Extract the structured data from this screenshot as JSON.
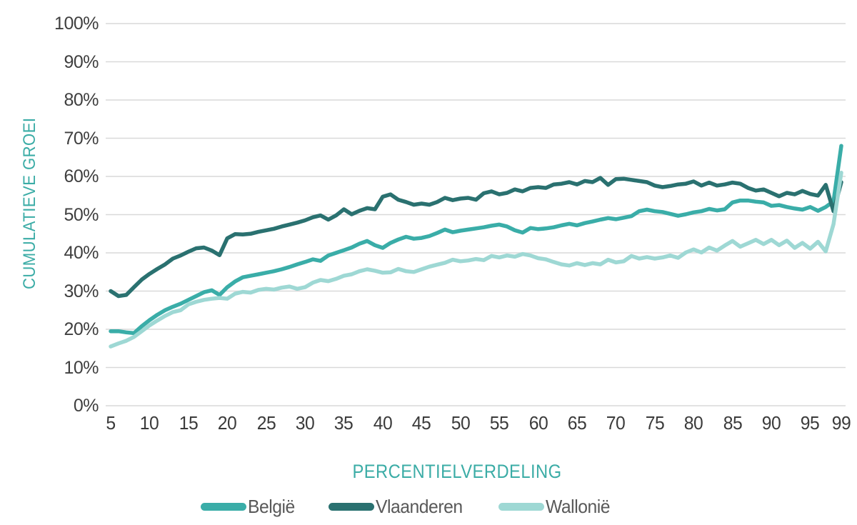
{
  "colors": {
    "background": "#ffffff",
    "gridline": "#d9d9d9",
    "tick_label": "#3f3f3f",
    "axis_title": "#3baca6",
    "legend_label": "#595959"
  },
  "chart_data": {
    "type": "line",
    "title": "",
    "xlabel": "PERCENTIELVERDELING",
    "ylabel": "CUMULATIEVE GROEI",
    "ylim": [
      0,
      100
    ],
    "grid": "horizontal",
    "legend_position": "bottom",
    "y_tick_values": [
      0,
      10,
      20,
      30,
      40,
      50,
      60,
      70,
      80,
      90,
      100
    ],
    "y_tick_labels": [
      "0%",
      "10%",
      "20%",
      "30%",
      "40%",
      "50%",
      "60%",
      "70%",
      "80%",
      "90%",
      "100%"
    ],
    "x_tick_values": [
      5,
      10,
      15,
      20,
      25,
      30,
      35,
      40,
      45,
      50,
      55,
      60,
      65,
      70,
      75,
      80,
      85,
      90,
      95,
      99
    ],
    "x_tick_labels": [
      "5",
      "10",
      "15",
      "20",
      "25",
      "30",
      "35",
      "40",
      "45",
      "50",
      "55",
      "60",
      "65",
      "70",
      "75",
      "80",
      "85",
      "90",
      "95",
      "99"
    ],
    "x": [
      5,
      6,
      7,
      8,
      9,
      10,
      11,
      12,
      13,
      14,
      15,
      16,
      17,
      18,
      19,
      20,
      21,
      22,
      23,
      24,
      25,
      26,
      27,
      28,
      29,
      30,
      31,
      32,
      33,
      34,
      35,
      36,
      37,
      38,
      39,
      40,
      41,
      42,
      43,
      44,
      45,
      46,
      47,
      48,
      49,
      50,
      51,
      52,
      53,
      54,
      55,
      56,
      57,
      58,
      59,
      60,
      61,
      62,
      63,
      64,
      65,
      66,
      67,
      68,
      69,
      70,
      71,
      72,
      73,
      74,
      75,
      76,
      77,
      78,
      79,
      80,
      81,
      82,
      83,
      84,
      85,
      86,
      87,
      88,
      89,
      90,
      91,
      92,
      93,
      94,
      95,
      96,
      97,
      98,
      99
    ],
    "series": [
      {
        "name": "België",
        "color": "#3aada8",
        "values": [
          19.5,
          19.5,
          19.2,
          19.0,
          20.8,
          22.4,
          23.8,
          25.0,
          25.9,
          26.7,
          27.7,
          28.7,
          29.7,
          30.2,
          29.0,
          31.0,
          32.5,
          33.6,
          34.0,
          34.4,
          34.8,
          35.2,
          35.7,
          36.3,
          37.0,
          37.6,
          38.3,
          37.9,
          39.3,
          40.0,
          40.7,
          41.4,
          42.4,
          43.1,
          42.0,
          41.3,
          42.6,
          43.5,
          44.2,
          43.7,
          43.9,
          44.4,
          45.2,
          46.1,
          45.4,
          45.8,
          46.1,
          46.4,
          46.7,
          47.1,
          47.4,
          46.9,
          45.9,
          45.3,
          46.5,
          46.2,
          46.4,
          46.7,
          47.2,
          47.6,
          47.2,
          47.8,
          48.2,
          48.7,
          49.1,
          48.8,
          49.2,
          49.6,
          50.9,
          51.3,
          50.9,
          50.7,
          50.2,
          49.7,
          50.1,
          50.6,
          50.9,
          51.5,
          51.1,
          51.4,
          53.2,
          53.7,
          53.7,
          53.4,
          53.2,
          52.3,
          52.5,
          52.0,
          51.6,
          51.3,
          52.0,
          51.0,
          52.0,
          53.5,
          68.0
        ]
      },
      {
        "name": "Vlaanderen",
        "color": "#2a7170",
        "values": [
          30.0,
          28.7,
          29.0,
          31.0,
          33.0,
          34.5,
          35.8,
          37.0,
          38.5,
          39.3,
          40.3,
          41.2,
          41.4,
          40.6,
          39.4,
          43.8,
          44.9,
          44.8,
          45.0,
          45.5,
          45.9,
          46.3,
          46.9,
          47.4,
          47.9,
          48.5,
          49.3,
          49.8,
          48.7,
          49.8,
          51.4,
          50.1,
          51.0,
          51.7,
          51.4,
          54.7,
          55.3,
          53.9,
          53.3,
          52.6,
          52.9,
          52.6,
          53.3,
          54.4,
          53.8,
          54.2,
          54.4,
          53.9,
          55.6,
          56.1,
          55.3,
          55.7,
          56.6,
          56.1,
          57.0,
          57.2,
          57.0,
          57.9,
          58.1,
          58.5,
          57.9,
          58.8,
          58.5,
          59.6,
          57.8,
          59.3,
          59.4,
          59.1,
          58.8,
          58.5,
          57.6,
          57.2,
          57.5,
          57.9,
          58.1,
          58.7,
          57.6,
          58.4,
          57.6,
          57.9,
          58.4,
          58.1,
          57.0,
          56.3,
          56.6,
          55.7,
          54.8,
          55.7,
          55.3,
          56.2,
          55.4,
          55.0,
          57.8,
          50.9,
          58.5
        ]
      },
      {
        "name": "Wallonië",
        "color": "#9ed8d4",
        "values": [
          15.5,
          16.3,
          17.0,
          18.0,
          19.5,
          21.0,
          22.3,
          23.5,
          24.5,
          25.0,
          26.5,
          27.2,
          27.7,
          28.0,
          28.2,
          28.0,
          29.3,
          29.8,
          29.6,
          30.3,
          30.6,
          30.4,
          30.9,
          31.2,
          30.6,
          31.0,
          32.2,
          32.9,
          32.6,
          33.2,
          34.0,
          34.4,
          35.2,
          35.7,
          35.3,
          34.8,
          34.9,
          35.8,
          35.2,
          35.0,
          35.7,
          36.4,
          36.9,
          37.4,
          38.2,
          37.8,
          38.0,
          38.4,
          38.1,
          39.2,
          38.8,
          39.3,
          39.0,
          39.7,
          39.3,
          38.6,
          38.3,
          37.6,
          37.0,
          36.7,
          37.3,
          36.8,
          37.3,
          37.0,
          38.2,
          37.5,
          37.8,
          39.2,
          38.5,
          38.9,
          38.5,
          38.8,
          39.3,
          38.7,
          40.1,
          40.9,
          40.1,
          41.4,
          40.6,
          41.9,
          43.1,
          41.6,
          42.5,
          43.4,
          42.3,
          43.4,
          42.0,
          43.2,
          41.3,
          42.6,
          41.1,
          42.9,
          40.4,
          47.5,
          61.0
        ]
      }
    ]
  }
}
